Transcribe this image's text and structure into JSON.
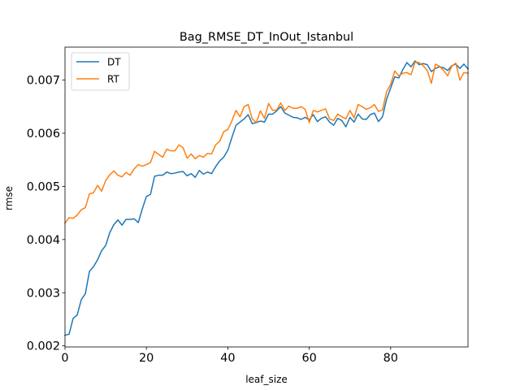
{
  "chart_data": {
    "type": "line",
    "title": "Bag_RMSE_DT_InOut_Istanbul",
    "xlabel": "leaf_size",
    "ylabel": "rmse",
    "xlim": [
      0,
      99
    ],
    "ylim": [
      0.00198,
      0.00762
    ],
    "xticks": [
      0,
      20,
      40,
      60,
      80
    ],
    "xtick_labels": [
      "0",
      "20",
      "40",
      "60",
      "80"
    ],
    "yticks": [
      0.002,
      0.003,
      0.004,
      0.005,
      0.006,
      0.007
    ],
    "ytick_labels": [
      "0.002",
      "0.003",
      "0.004",
      "0.005",
      "0.006",
      "0.007"
    ],
    "grid": false,
    "legend_position": "upper-left",
    "series": [
      {
        "name": "DT",
        "color": "#1f77b4",
        "values": [
          0.0022,
          0.00222,
          0.00252,
          0.00258,
          0.00287,
          0.00298,
          0.0034,
          0.00349,
          0.00362,
          0.00379,
          0.00389,
          0.00413,
          0.00428,
          0.00437,
          0.00427,
          0.00438,
          0.00438,
          0.00439,
          0.00432,
          0.00458,
          0.00481,
          0.00485,
          0.00519,
          0.00521,
          0.00521,
          0.00527,
          0.00524,
          0.00525,
          0.00527,
          0.00528,
          0.0052,
          0.00524,
          0.00517,
          0.0053,
          0.00523,
          0.00527,
          0.00524,
          0.00537,
          0.00548,
          0.00555,
          0.00568,
          0.00592,
          0.00615,
          0.00621,
          0.00627,
          0.00635,
          0.00618,
          0.0062,
          0.00623,
          0.00621,
          0.00636,
          0.00636,
          0.00642,
          0.0065,
          0.00638,
          0.00634,
          0.0063,
          0.00629,
          0.00626,
          0.0063,
          0.00625,
          0.00635,
          0.00622,
          0.00628,
          0.00631,
          0.00621,
          0.00615,
          0.00628,
          0.00624,
          0.00612,
          0.0063,
          0.00621,
          0.00636,
          0.00627,
          0.00626,
          0.00635,
          0.00638,
          0.00622,
          0.00631,
          0.00664,
          0.00685,
          0.00706,
          0.00704,
          0.0072,
          0.00733,
          0.00725,
          0.00736,
          0.00729,
          0.00731,
          0.00729,
          0.00716,
          0.00722,
          0.00725,
          0.00723,
          0.00718,
          0.00727,
          0.0073,
          0.00722,
          0.0073,
          0.00721
        ]
      },
      {
        "name": "RT",
        "color": "#ff7f0e",
        "values": [
          0.00431,
          0.00441,
          0.0044,
          0.00446,
          0.00456,
          0.0046,
          0.00486,
          0.00488,
          0.00502,
          0.00491,
          0.00511,
          0.00522,
          0.00529,
          0.00521,
          0.00518,
          0.00526,
          0.00521,
          0.00533,
          0.00541,
          0.00538,
          0.00541,
          0.00545,
          0.00566,
          0.0056,
          0.00555,
          0.0057,
          0.00567,
          0.00567,
          0.00578,
          0.00573,
          0.00553,
          0.00561,
          0.00552,
          0.00558,
          0.00555,
          0.00562,
          0.00561,
          0.00578,
          0.00585,
          0.00603,
          0.00607,
          0.00623,
          0.00643,
          0.00631,
          0.0065,
          0.00654,
          0.00627,
          0.0062,
          0.00642,
          0.00628,
          0.00656,
          0.00643,
          0.00644,
          0.00657,
          0.00643,
          0.00651,
          0.00647,
          0.00647,
          0.0065,
          0.00645,
          0.0062,
          0.00643,
          0.0064,
          0.00643,
          0.00646,
          0.00627,
          0.00624,
          0.00636,
          0.00631,
          0.00627,
          0.00643,
          0.00629,
          0.00654,
          0.0065,
          0.00645,
          0.00648,
          0.00654,
          0.00641,
          0.00644,
          0.00678,
          0.00692,
          0.00717,
          0.00708,
          0.00713,
          0.00714,
          0.0071,
          0.00734,
          0.00733,
          0.00727,
          0.00718,
          0.00694,
          0.0073,
          0.00726,
          0.00718,
          0.00708,
          0.00726,
          0.00732,
          0.007,
          0.00714,
          0.00713
        ]
      }
    ]
  }
}
